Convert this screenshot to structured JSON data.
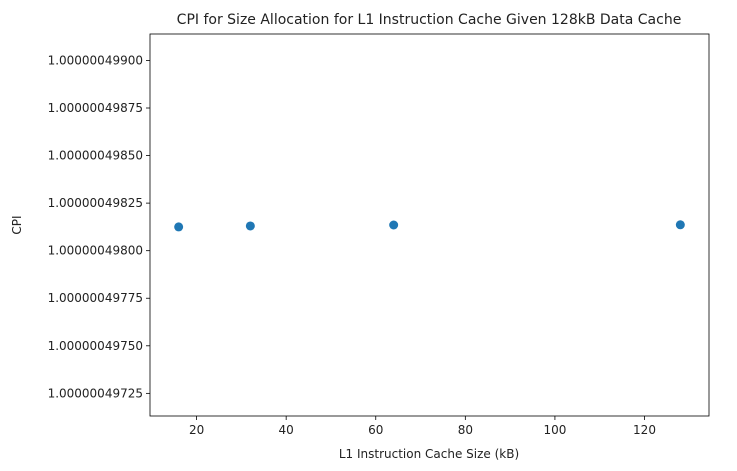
{
  "chart_data": {
    "type": "scatter",
    "title": "CPI for Size Allocation for L1 Instruction Cache Given 128kB Data Cache",
    "xlabel": "L1 Instruction Cache Size (kB)",
    "ylabel": "CPI",
    "x": [
      16,
      32,
      64,
      128
    ],
    "y": [
      1.000000498125,
      1.00000049813,
      1.000000498135,
      1.000000498136
    ],
    "xticks": [
      20,
      40,
      60,
      80,
      100,
      120
    ],
    "xtick_labels": [
      "20",
      "40",
      "60",
      "80",
      "100",
      "120"
    ],
    "xlim": [
      9.6,
      134.4
    ],
    "yticks": [
      1.00000049725,
      1.0000004975,
      1.00000049775,
      1.000000498,
      1.00000049825,
      1.0000004985,
      1.00000049875,
      1.000000499
    ],
    "ytick_labels": [
      "1.00000049725",
      "1.00000049750",
      "1.00000049775",
      "1.00000049800",
      "1.00000049825",
      "1.00000049850",
      "1.00000049875",
      "1.00000049900"
    ],
    "ylim": [
      1.000000497131,
      1.000000499139
    ],
    "grid": false,
    "marker_color": "#1f77b4"
  }
}
